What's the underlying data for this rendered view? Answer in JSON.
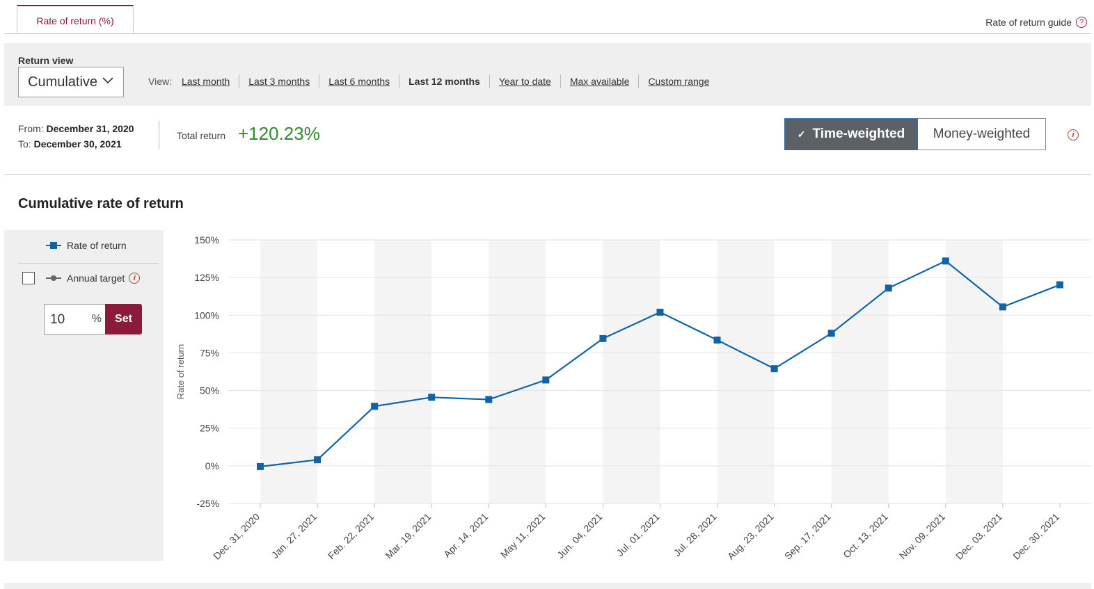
{
  "tabs": {
    "active_label": "Rate of return (%)",
    "guide_label": "Rate of return guide",
    "guide_icon": "question-circle-icon"
  },
  "return_view": {
    "label": "Return view",
    "selected": "Cumulative",
    "view_label": "View:",
    "periods": [
      "Last month",
      "Last 3 months",
      "Last 6 months",
      "Last 12 months",
      "Year to date",
      "Max available",
      "Custom range"
    ],
    "active_period": "Last 12 months"
  },
  "summary": {
    "from_label": "From:",
    "from_date": "December 31, 2020",
    "to_label": "To:",
    "to_date": "December 30, 2021",
    "total_label": "Total return",
    "total_value": "+120.23%",
    "toggle": {
      "selected": "Time-weighted",
      "other": "Money-weighted"
    },
    "info_icon": "info-circle-icon"
  },
  "chart_section": {
    "title": "Cumulative rate of return",
    "legend": {
      "series_label": "Rate of return",
      "target_label": "Annual target",
      "target_checked": false
    },
    "target_input": {
      "value": "10",
      "unit": "%"
    },
    "set_label": "Set"
  },
  "colors": {
    "accent": "#8a1c3a",
    "series": "#0e64a6",
    "positive": "#2e8b2e",
    "band": "#f4f4f4"
  },
  "chart_data": {
    "type": "line",
    "ylabel": "Rate of return",
    "xlabel": "",
    "ylim": [
      -25,
      150
    ],
    "yticks": [
      "150%",
      "125%",
      "100%",
      "75%",
      "50%",
      "25%",
      "0%",
      "-25%"
    ],
    "ytick_values": [
      150,
      125,
      100,
      75,
      50,
      25,
      0,
      -25
    ],
    "categories": [
      "Dec. 31, 2020",
      "Jan. 27, 2021",
      "Feb. 22, 2021",
      "Mar. 19, 2021",
      "Apr. 14, 2021",
      "May 11, 2021",
      "Jun. 04, 2021",
      "Jul. 01, 2021",
      "Jul. 28, 2021",
      "Aug. 23, 2021",
      "Sep. 17, 2021",
      "Oct. 13, 2021",
      "Nov. 09, 2021",
      "Dec. 03, 2021",
      "Dec. 30, 2021"
    ],
    "series": [
      {
        "name": "Rate of return",
        "values": [
          -0.5,
          4,
          39.5,
          45.5,
          44,
          57,
          84.5,
          102,
          83.5,
          64.5,
          88,
          118,
          136,
          105.5,
          120.2
        ]
      }
    ],
    "grid": true,
    "legend": "left-panel"
  }
}
